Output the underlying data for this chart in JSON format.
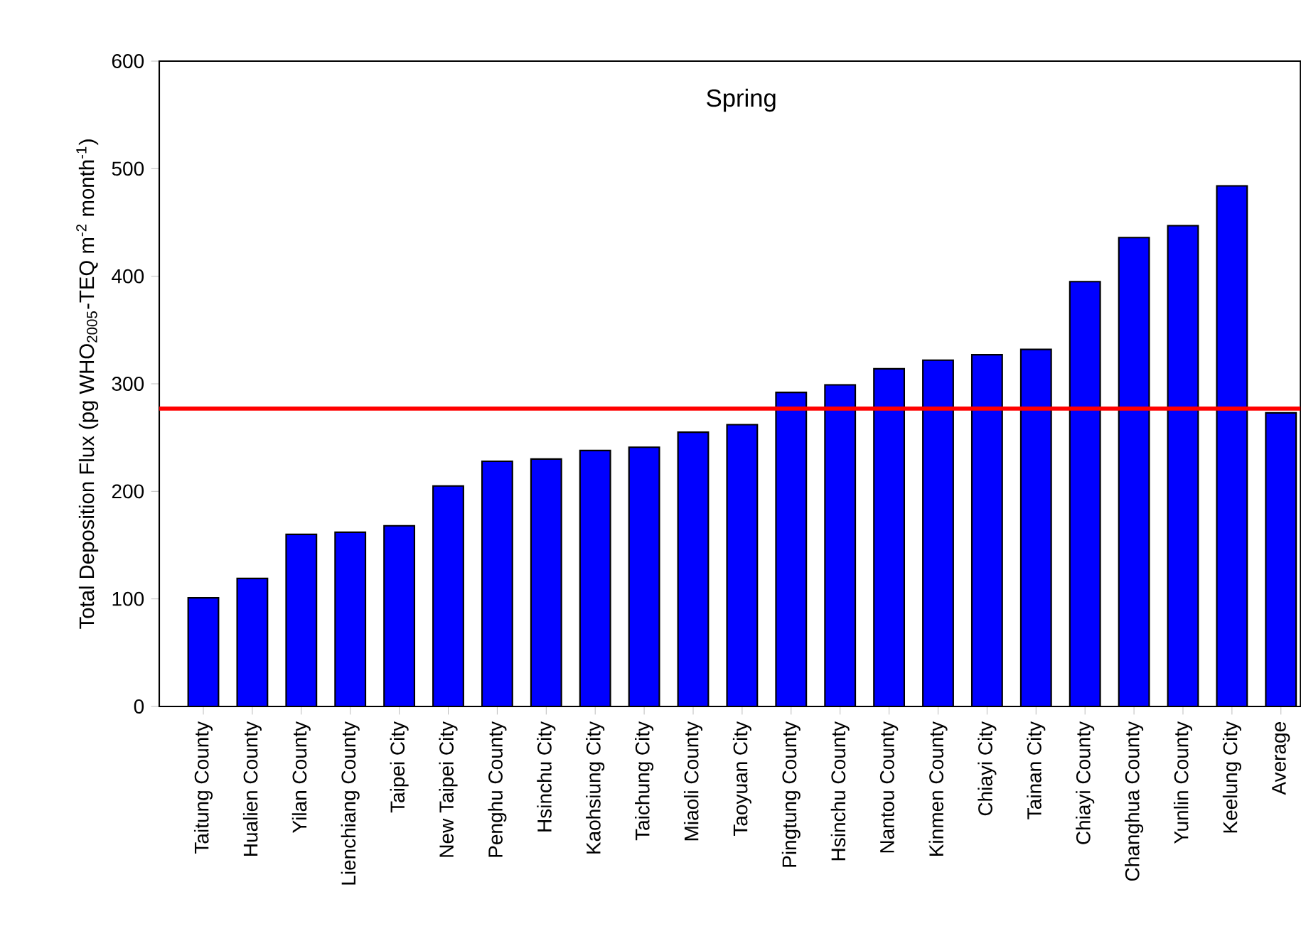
{
  "chart_data": {
    "type": "bar",
    "title": "Spring",
    "ylabel": "Total Deposition Flux (pg WHO$_{2005}$-TEQ m$^{-2}$ month$^{-1}$)",
    "categories": [
      "Taitung County",
      "Hualien County",
      "Yilan County",
      "Lienchiang County",
      "Taipei City",
      "New Taipei City",
      "Penghu County",
      "Hsinchu City",
      "Kaohsiung City",
      "Taichung City",
      "Miaoli County",
      "Taoyuan City",
      "Pingtung County",
      "Hsinchu County",
      "Nantou County",
      "Kinmen County",
      "Chiayi City",
      "Tainan City",
      "Chiayi County",
      "Changhua County",
      "Yunlin County",
      "Keelung City",
      "Average"
    ],
    "values": [
      101,
      119,
      160,
      162,
      168,
      205,
      228,
      230,
      238,
      241,
      255,
      262,
      292,
      299,
      314,
      322,
      327,
      332,
      395,
      436,
      447,
      484,
      273
    ],
    "color": "#0000ff",
    "ylim": [
      0,
      600
    ],
    "yticks": [
      0,
      100,
      200,
      300,
      400,
      500,
      600
    ],
    "ref_lines": [
      {
        "axis": "y",
        "value": 277,
        "color": "#ff0000"
      }
    ],
    "grid": false
  }
}
